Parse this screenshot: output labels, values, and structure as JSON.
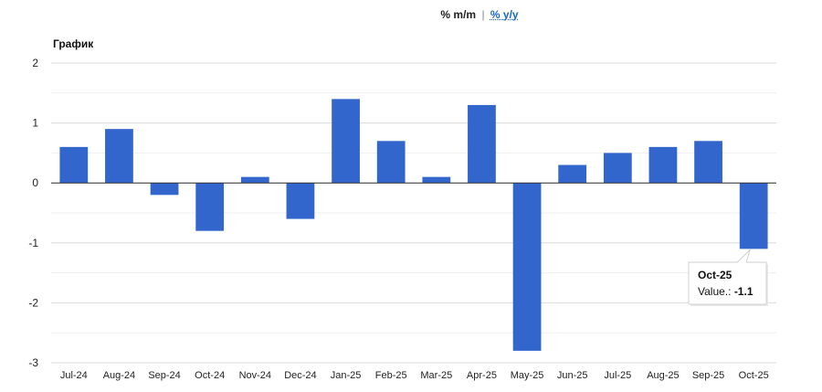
{
  "header": {
    "mm_label": "% m/m",
    "separator": "|",
    "yy_label": "% y/y"
  },
  "chart_data": {
    "type": "bar",
    "title": "График",
    "categories": [
      "Jul-24",
      "Aug-24",
      "Sep-24",
      "Oct-24",
      "Nov-24",
      "Dec-24",
      "Jan-25",
      "Feb-25",
      "Mar-25",
      "Apr-25",
      "May-25",
      "Jun-25",
      "Jul-25",
      "Aug-25",
      "Sep-25",
      "Oct-25"
    ],
    "series": [
      {
        "values": [
          0.6,
          0.9,
          -0.2,
          -0.8,
          0.1,
          -0.6,
          1.4,
          0.7,
          0.1,
          1.3,
          -2.8,
          0.3,
          0.5,
          0.6,
          0.7,
          -1.1
        ]
      }
    ],
    "ylim": [
      -3,
      2
    ],
    "yticks": [
      2,
      1,
      0,
      -1,
      -2,
      -3
    ],
    "grid": true,
    "bar_color": "#3366cc",
    "tooltip": {
      "category": "Oct-25",
      "value_label": "Value.:",
      "value": "-1.1"
    }
  }
}
